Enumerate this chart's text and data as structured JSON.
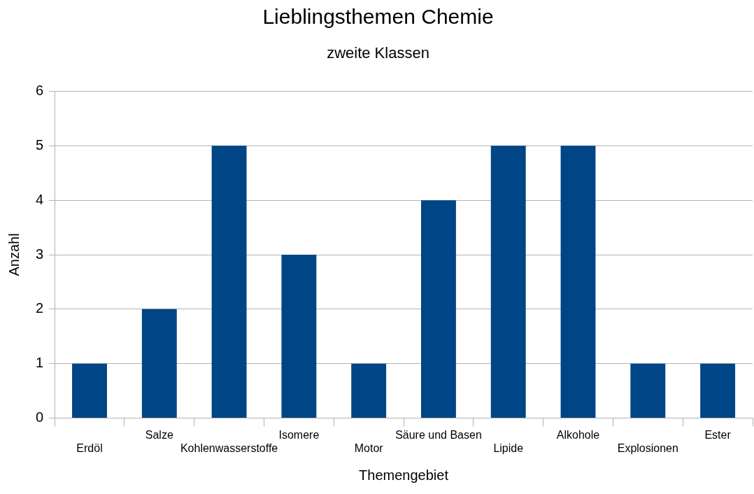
{
  "chart_data": {
    "type": "bar",
    "title": "Lieblingsthemen Chemie",
    "subtitle": "zweite Klassen",
    "xlabel": "Themengebiet",
    "ylabel": "Anzahl",
    "categories": [
      "Erdöl",
      "Salze",
      "Kohlenwasserstoffe",
      "Isomere",
      "Motor",
      "Säure und Basen",
      "Lipide",
      "Alkohole",
      "Explosionen",
      "Ester"
    ],
    "values": [
      1,
      2,
      5,
      3,
      1,
      4,
      5,
      5,
      1,
      1
    ],
    "color": "#004586",
    "ylim": [
      0,
      6
    ],
    "yticks": [
      0,
      1,
      2,
      3,
      4,
      5,
      6
    ],
    "grid": "y",
    "legend": false
  }
}
